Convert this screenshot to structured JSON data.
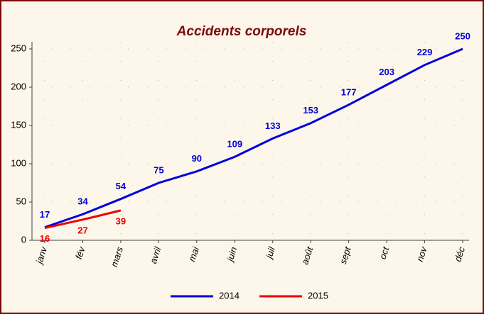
{
  "chart_data": {
    "type": "line",
    "title": "Accidents corporels",
    "categories": [
      "janv",
      "fév",
      "mars",
      "avril",
      "mai",
      "juin",
      "juil",
      "août",
      "sept",
      "oct",
      "nov",
      "déc"
    ],
    "series": [
      {
        "name": "2014",
        "color": "#0000dd",
        "values": [
          17,
          34,
          54,
          75,
          90,
          109,
          133,
          153,
          177,
          203,
          229,
          250
        ]
      },
      {
        "name": "2015",
        "color": "#ee0000",
        "values": [
          16,
          27,
          39,
          null,
          null,
          null,
          null,
          null,
          null,
          null,
          null,
          null
        ]
      }
    ],
    "ylim": [
      0,
      250
    ],
    "yticks": [
      0,
      50,
      100,
      150,
      200,
      250
    ],
    "grid": true,
    "legend": "bottom"
  }
}
